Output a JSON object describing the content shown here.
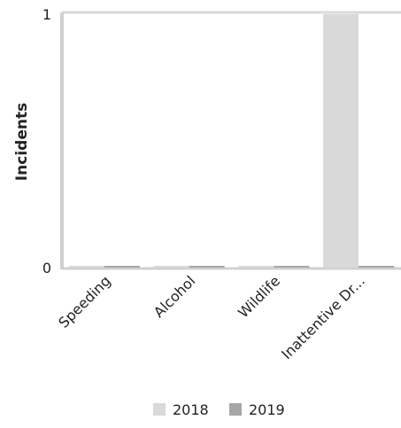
{
  "chart_data": {
    "type": "bar",
    "title": "",
    "xlabel": "",
    "ylabel": "Incidents",
    "ylim": [
      0,
      1
    ],
    "yticks": [
      "0",
      "1"
    ],
    "categories": [
      "Speeding",
      "Alcohol",
      "Wildlife",
      "Inattentive Dr..."
    ],
    "series": [
      {
        "name": "2018",
        "color": "#d9d9d9",
        "values": [
          0,
          0,
          0,
          1
        ]
      },
      {
        "name": "2019",
        "color": "#a6a6a6",
        "values": [
          0,
          0,
          0,
          0
        ]
      }
    ],
    "legend": "bottom-center",
    "grid": false
  }
}
